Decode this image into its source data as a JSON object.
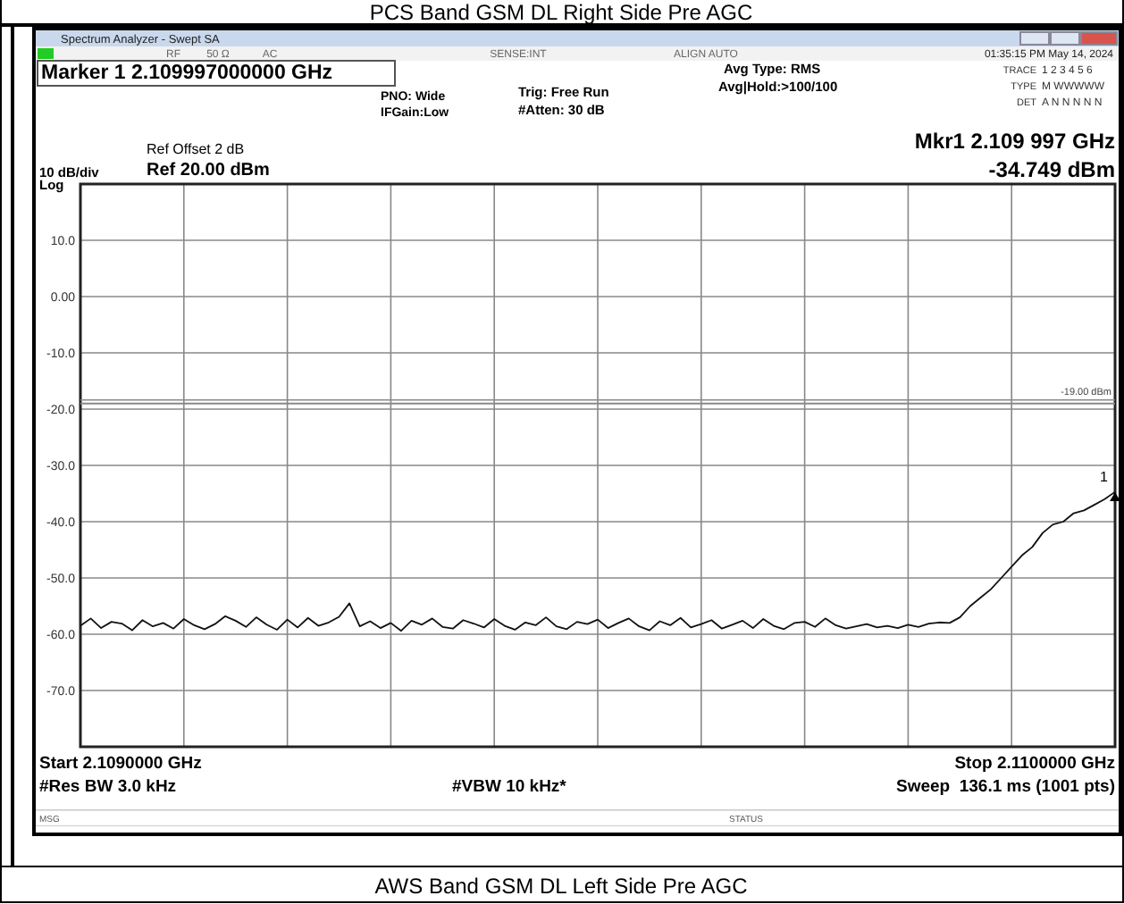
{
  "chart_data": {
    "type": "line",
    "title": "PCS Band GSM DL Right Side Pre AGC",
    "ylim": [
      -80,
      20
    ],
    "yticks": [
      {
        "value": 20,
        "label": null
      },
      {
        "value": 10,
        "label": "10.0"
      },
      {
        "value": 0,
        "label": "0.00"
      },
      {
        "value": -10,
        "label": "-10.0"
      },
      {
        "value": -20,
        "label": "-20.0"
      },
      {
        "value": -30,
        "label": "-30.0"
      },
      {
        "value": -40,
        "label": "-40.0"
      },
      {
        "value": -50,
        "label": "-50.0"
      },
      {
        "value": -60,
        "label": "-60.0"
      },
      {
        "value": -70,
        "label": "-70.0"
      },
      {
        "value": -80,
        "label": null
      }
    ],
    "grid": true,
    "tick_labels": "y",
    "ref_lines": [
      {
        "axis": "y",
        "value": -19,
        "label": "-19.00 dBm",
        "color": "#888888"
      }
    ],
    "annotations": [
      "Spectrum Analyzer - Swept SA",
      "RF",
      "50 Ω",
      "AC",
      "SENSE:INT",
      "ALIGN AUTO",
      "01:35:15 PM May 14, 2024",
      "Marker 1 2.109997000000 GHz",
      "PNO: Wide",
      "IFGain:Low",
      "Trig: Free Run",
      "#Atten: 30 dB",
      "Avg Type: RMS",
      "Avg|Hold:>100/100",
      "TRACE",
      "1 2 3 4 5 6",
      "TYPE",
      "M WWWWW",
      "DET",
      "A N N N N N",
      "Ref Offset 2 dB",
      "Ref 20.00 dBm",
      "10 dB/div",
      "Log",
      "Mkr1 2.109 997 GHz",
      "-34.749 dBm",
      "Start 2.1090000 GHz",
      "Stop 2.1100000 GHz",
      "#Res BW 3.0 kHz",
      "#VBW 10 kHz*",
      "Sweep  136.1 ms (1001 pts)",
      "MSG",
      "STATUS",
      "AWS Band GSM DL Left Side Pre AGC",
      {
        "text": "1",
        "y": -34.749
      }
    ],
    "categories": [
      null,
      null,
      null,
      null,
      null,
      null,
      null,
      null,
      null,
      null,
      null,
      null,
      null,
      null,
      null,
      null,
      null,
      null,
      null,
      null,
      null,
      null,
      null,
      null,
      null,
      null,
      null,
      null,
      null,
      null,
      null,
      null,
      null,
      null,
      null,
      null,
      null,
      null,
      null,
      null,
      null,
      null,
      null,
      null,
      null,
      null,
      null,
      null,
      null,
      null,
      null,
      null,
      null,
      null,
      null,
      null,
      null,
      null,
      null,
      null,
      null,
      null,
      null,
      null,
      null,
      null,
      null,
      null,
      null,
      null,
      null,
      null,
      null,
      null,
      null,
      null,
      null,
      null,
      null,
      null,
      null,
      null,
      null,
      null,
      null,
      null,
      null,
      null,
      null,
      null,
      null,
      null,
      null,
      null,
      null,
      null,
      null,
      null,
      null,
      null,
      null
    ],
    "series": [
      {
        "color": "#111111",
        "values": [
          -58.5,
          -57.2,
          -58.9,
          -57.8,
          -58.1,
          -59.3,
          -57.5,
          -58.6,
          -58.0,
          -59.0,
          -57.3,
          -58.4,
          -59.1,
          -58.2,
          -56.8,
          -57.6,
          -58.7,
          -57.0,
          -58.3,
          -59.2,
          -57.4,
          -58.8,
          -57.1,
          -58.5,
          -57.9,
          -56.9,
          -54.5,
          -58.6,
          -57.7,
          -58.9,
          -58.0,
          -59.4,
          -57.6,
          -58.3,
          -57.2,
          -58.7,
          -59.0,
          -57.5,
          -58.1,
          -58.8,
          -57.3,
          -58.5,
          -59.2,
          -57.9,
          -58.4,
          -57.0,
          -58.6,
          -59.1,
          -57.8,
          -58.2,
          -57.4,
          -58.9,
          -58.0,
          -57.2,
          -58.6,
          -59.3,
          -57.7,
          -58.4,
          -57.1,
          -58.8,
          -58.2,
          -57.5,
          -59.0,
          -58.3,
          -57.6,
          -58.9,
          -57.3,
          -58.5,
          -59.1,
          -58.0,
          -57.8,
          -58.7,
          -57.2,
          -58.4,
          -59.0,
          -58.6,
          -58.2,
          -58.8,
          -58.5,
          -58.9,
          -58.3,
          -58.7,
          -58.1,
          -57.9,
          -58.0,
          -57.0,
          -55.0,
          -53.5,
          -52.0,
          -50.0,
          -48.0,
          -46.0,
          -44.5,
          -42.0,
          -40.5,
          -40.0,
          -38.5,
          -38.0,
          -37.0,
          -36.0,
          -34.7
        ]
      }
    ]
  }
}
